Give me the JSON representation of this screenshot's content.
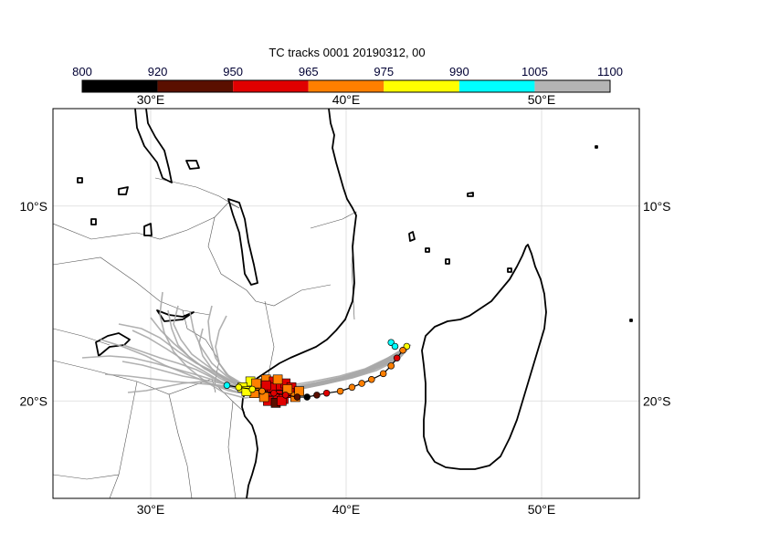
{
  "title": "TC tracks  0001 20190312, 00",
  "colorbar": {
    "labels": [
      "800",
      "920",
      "950",
      "965",
      "975",
      "990",
      "1005",
      "1100"
    ],
    "colors": [
      "#000000",
      "#5a0f00",
      "#e00000",
      "#ff7f00",
      "#ffff00",
      "#00ffff",
      "#b4b4b4"
    ]
  },
  "axes": {
    "lon_labels": [
      "30°E",
      "40°E",
      "50°E"
    ],
    "lat_labels": [
      "10°S",
      "20°S"
    ],
    "lon_values": [
      30,
      40,
      50
    ],
    "lat_values": [
      -10,
      -20
    ],
    "lon_range": [
      25,
      55
    ],
    "lat_range": [
      -25,
      -5
    ]
  },
  "map": {
    "coastline_color": "#000000",
    "border_color": "#555555",
    "ensemble_track_color": "#a8a8a8"
  },
  "observed_track": {
    "points": [
      {
        "lon": 43.1,
        "lat": -17.2,
        "cat": "990"
      },
      {
        "lon": 42.9,
        "lat": -17.4,
        "cat": "975"
      },
      {
        "lon": 42.6,
        "lat": -17.8,
        "cat": "965"
      },
      {
        "lon": 42.3,
        "lat": -18.2,
        "cat": "975"
      },
      {
        "lon": 41.9,
        "lat": -18.6,
        "cat": "975"
      },
      {
        "lon": 41.3,
        "lat": -18.9,
        "cat": "975"
      },
      {
        "lon": 40.8,
        "lat": -19.1,
        "cat": "975"
      },
      {
        "lon": 40.3,
        "lat": -19.3,
        "cat": "975"
      },
      {
        "lon": 39.7,
        "lat": -19.5,
        "cat": "975"
      },
      {
        "lon": 39.0,
        "lat": -19.6,
        "cat": "965"
      },
      {
        "lon": 38.5,
        "lat": -19.7,
        "cat": "950"
      },
      {
        "lon": 38.0,
        "lat": -19.8,
        "cat": "920"
      },
      {
        "lon": 37.5,
        "lat": -19.8,
        "cat": "950"
      },
      {
        "lon": 36.9,
        "lat": -19.7,
        "cat": "965"
      },
      {
        "lon": 36.3,
        "lat": -19.6,
        "cat": "965"
      },
      {
        "lon": 35.7,
        "lat": -19.5,
        "cat": "975"
      },
      {
        "lon": 35.2,
        "lat": -19.4,
        "cat": "990"
      },
      {
        "lon": 34.5,
        "lat": -19.3,
        "cat": "990"
      },
      {
        "lon": 33.9,
        "lat": -19.2,
        "cat": "1005"
      }
    ]
  }
}
